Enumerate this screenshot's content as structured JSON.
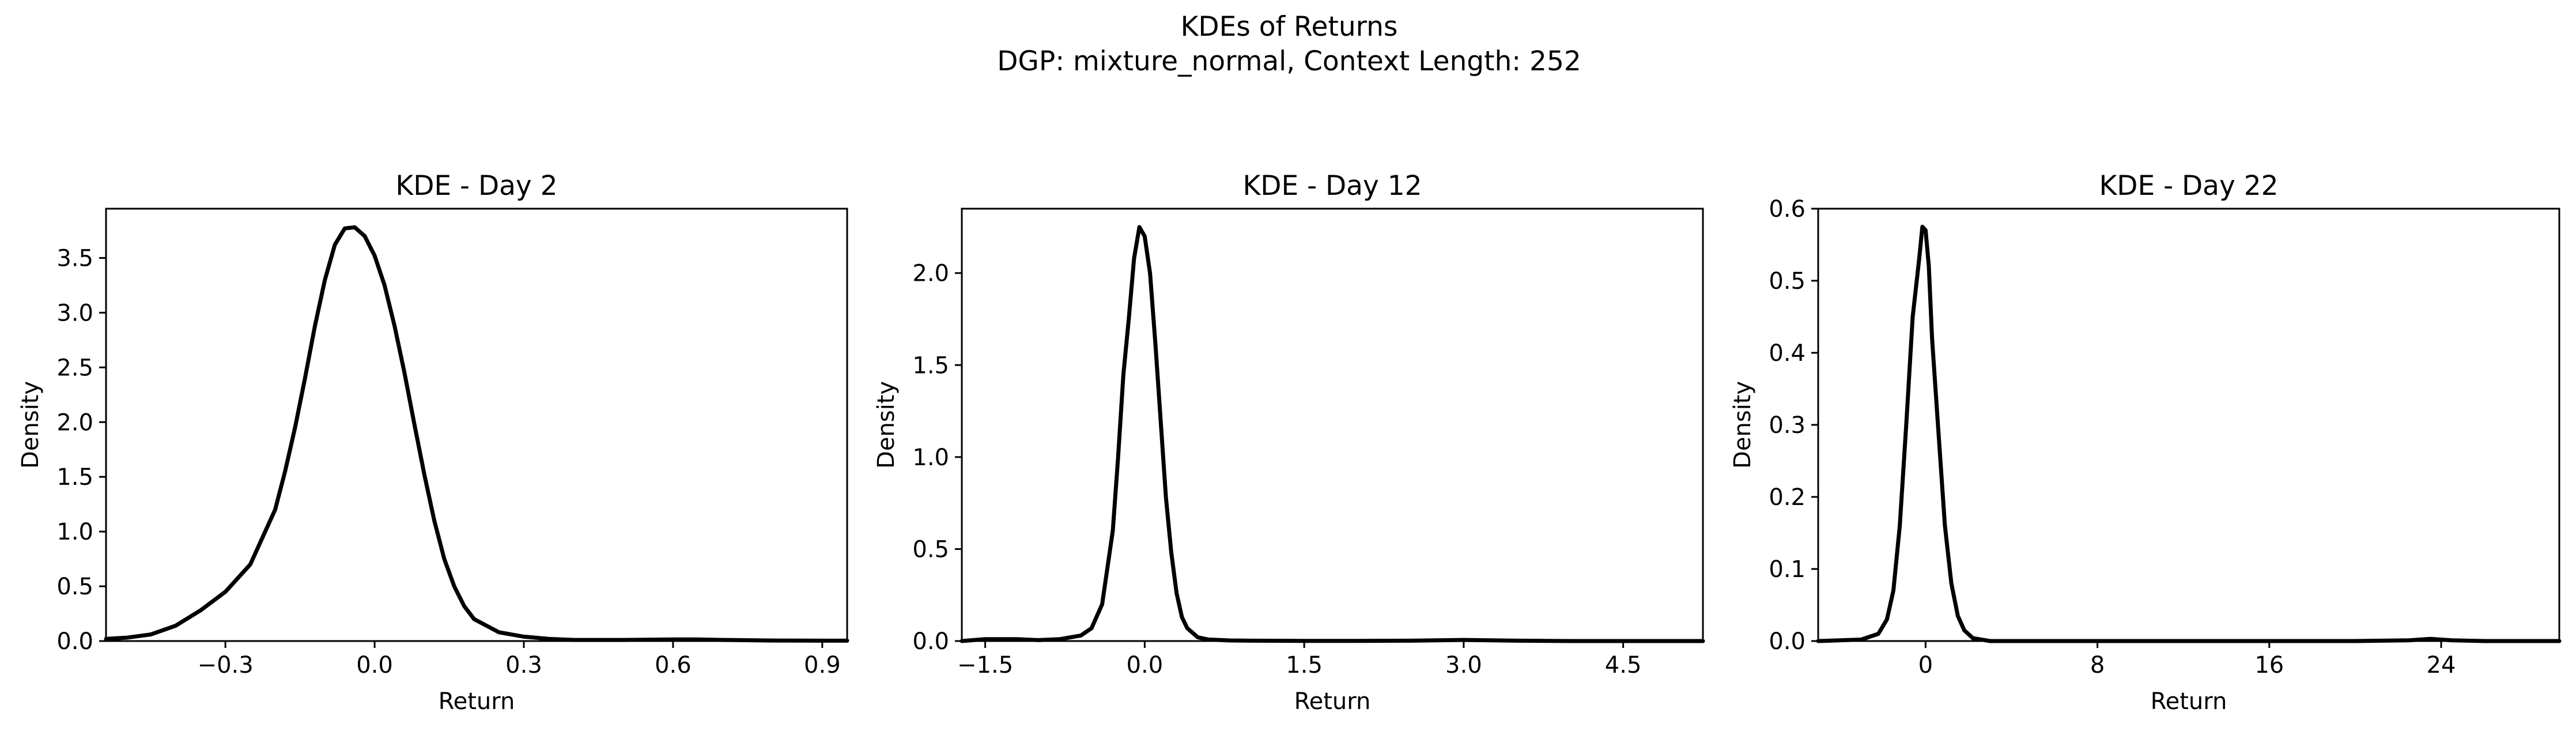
{
  "figure": {
    "suptitle_line1": "KDEs of Returns",
    "suptitle_line2": "DGP: mixture_normal, Context Length: 252"
  },
  "colors": {
    "line": "#000000",
    "axes": "#000000",
    "background": "#ffffff"
  },
  "chart_data": [
    {
      "type": "line",
      "title": "KDE - Day 2",
      "xlabel": "Return",
      "ylabel": "Density",
      "xlim": [
        -0.54,
        0.95
      ],
      "ylim": [
        0,
        3.95
      ],
      "xticks": [
        -0.3,
        0.0,
        0.3,
        0.6,
        0.9
      ],
      "xtick_labels": [
        "−0.3",
        "0.0",
        "0.3",
        "0.6",
        "0.9"
      ],
      "yticks": [
        0,
        0.5,
        1.0,
        1.5,
        2.0,
        2.5,
        3.0,
        3.5
      ],
      "ytick_labels": [
        "0.0",
        "0.5",
        "1.0",
        "1.5",
        "2.0",
        "2.5",
        "3.0",
        "3.5"
      ],
      "grid": false,
      "series": [
        {
          "x": [
            -0.54,
            -0.5,
            -0.45,
            -0.4,
            -0.35,
            -0.3,
            -0.25,
            -0.2,
            -0.18,
            -0.16,
            -0.14,
            -0.12,
            -0.1,
            -0.08,
            -0.06,
            -0.04,
            -0.02,
            0.0,
            0.02,
            0.04,
            0.06,
            0.08,
            0.1,
            0.12,
            0.14,
            0.16,
            0.18,
            0.2,
            0.25,
            0.3,
            0.35,
            0.4,
            0.5,
            0.6,
            0.65,
            0.7,
            0.8,
            0.9,
            0.95
          ],
          "y": [
            0.02,
            0.03,
            0.06,
            0.14,
            0.28,
            0.45,
            0.7,
            1.2,
            1.55,
            1.95,
            2.4,
            2.88,
            3.3,
            3.62,
            3.77,
            3.78,
            3.7,
            3.52,
            3.25,
            2.88,
            2.45,
            1.98,
            1.52,
            1.1,
            0.75,
            0.5,
            0.32,
            0.2,
            0.08,
            0.04,
            0.02,
            0.01,
            0.01,
            0.015,
            0.015,
            0.01,
            0.005,
            0.003,
            0.003
          ]
        }
      ]
    },
    {
      "type": "line",
      "title": "KDE - Day 12",
      "xlabel": "Return",
      "ylabel": "Density",
      "xlim": [
        -1.72,
        5.25
      ],
      "ylim": [
        0,
        2.35
      ],
      "xticks": [
        -1.5,
        0.0,
        1.5,
        3.0,
        4.5
      ],
      "xtick_labels": [
        "−1.5",
        "0.0",
        "1.5",
        "3.0",
        "4.5"
      ],
      "yticks": [
        0,
        0.5,
        1.0,
        1.5,
        2.0
      ],
      "ytick_labels": [
        "0.0",
        "0.5",
        "1.0",
        "1.5",
        "2.0"
      ],
      "grid": false,
      "series": [
        {
          "x": [
            -1.72,
            -1.5,
            -1.2,
            -1.0,
            -0.8,
            -0.6,
            -0.5,
            -0.4,
            -0.3,
            -0.25,
            -0.2,
            -0.15,
            -0.1,
            -0.05,
            0.0,
            0.05,
            0.1,
            0.15,
            0.2,
            0.25,
            0.3,
            0.35,
            0.4,
            0.5,
            0.6,
            0.8,
            1.0,
            1.5,
            2.0,
            2.5,
            3.0,
            3.5,
            4.0,
            4.5,
            5.0,
            5.25
          ],
          "y": [
            0.0,
            0.01,
            0.01,
            0.005,
            0.01,
            0.03,
            0.07,
            0.2,
            0.6,
            1.0,
            1.45,
            1.75,
            2.08,
            2.25,
            2.2,
            2.0,
            1.62,
            1.2,
            0.78,
            0.48,
            0.26,
            0.13,
            0.07,
            0.02,
            0.008,
            0.003,
            0.002,
            0.001,
            0.001,
            0.002,
            0.006,
            0.002,
            0.0,
            0.0,
            0.0,
            0.0
          ]
        }
      ]
    },
    {
      "type": "line",
      "title": "KDE - Day 22",
      "xlabel": "Return",
      "ylabel": "Density",
      "xlim": [
        -5.0,
        29.5
      ],
      "ylim": [
        0,
        0.6
      ],
      "xticks": [
        0,
        8,
        16,
        24
      ],
      "xtick_labels": [
        "0",
        "8",
        "16",
        "24"
      ],
      "yticks": [
        0,
        0.1,
        0.2,
        0.3,
        0.4,
        0.5,
        0.6
      ],
      "ytick_labels": [
        "0.0",
        "0.1",
        "0.2",
        "0.3",
        "0.4",
        "0.5",
        "0.6"
      ],
      "grid": false,
      "series": [
        {
          "x": [
            -5.0,
            -4.0,
            -3.0,
            -2.2,
            -1.8,
            -1.5,
            -1.2,
            -0.9,
            -0.6,
            -0.3,
            -0.15,
            0.0,
            0.15,
            0.3,
            0.6,
            0.9,
            1.2,
            1.5,
            1.8,
            2.2,
            3.0,
            5.0,
            10.0,
            15.0,
            20.0,
            22.5,
            23.5,
            24.5,
            26.0,
            29.5
          ],
          "y": [
            0.0,
            0.001,
            0.002,
            0.01,
            0.03,
            0.07,
            0.16,
            0.3,
            0.45,
            0.53,
            0.575,
            0.57,
            0.52,
            0.42,
            0.29,
            0.16,
            0.08,
            0.035,
            0.015,
            0.004,
            0.0,
            0.0,
            0.0,
            0.0,
            0.0,
            0.001,
            0.003,
            0.001,
            0.0,
            0.0
          ]
        }
      ]
    }
  ]
}
